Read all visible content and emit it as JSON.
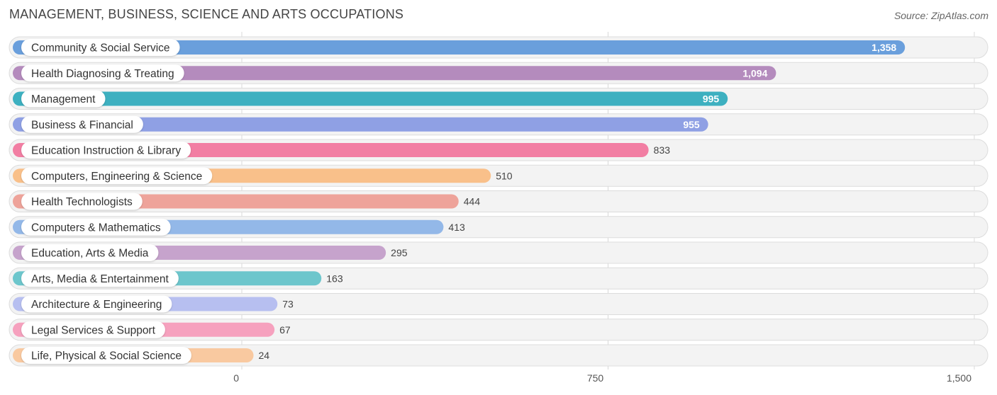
{
  "title": "MANAGEMENT, BUSINESS, SCIENCE AND ARTS OCCUPATIONS",
  "source": "Source: ZipAtlas.com",
  "chart_data": {
    "type": "bar",
    "orientation": "horizontal",
    "categories": [
      "Community & Social Service",
      "Health Diagnosing & Treating",
      "Management",
      "Business & Financial",
      "Education Instruction & Library",
      "Computers, Engineering & Science",
      "Health Technologists",
      "Computers & Mathematics",
      "Education, Arts & Media",
      "Arts, Media & Entertainment",
      "Architecture & Engineering",
      "Legal Services & Support",
      "Life, Physical & Social Science"
    ],
    "values": [
      1358,
      1094,
      995,
      955,
      833,
      510,
      444,
      413,
      295,
      163,
      73,
      67,
      24
    ],
    "value_labels": [
      "1,358",
      "1,094",
      "995",
      "955",
      "833",
      "510",
      "444",
      "413",
      "295",
      "163",
      "73",
      "67",
      "24"
    ],
    "colors": [
      "#6a9fdc",
      "#b48bbd",
      "#3db0c0",
      "#8fa0e4",
      "#f27ea3",
      "#f9c08a",
      "#eea39a",
      "#93b8e8",
      "#c6a3cc",
      "#6dc6cc",
      "#b7bff0",
      "#f6a1be",
      "#f9c9a0"
    ],
    "xlim": [
      0,
      1500
    ],
    "x_ticks": [
      0,
      750,
      1500
    ],
    "x_tick_labels": [
      "0",
      "750",
      "1,500"
    ],
    "grid": true,
    "legend": "none"
  }
}
